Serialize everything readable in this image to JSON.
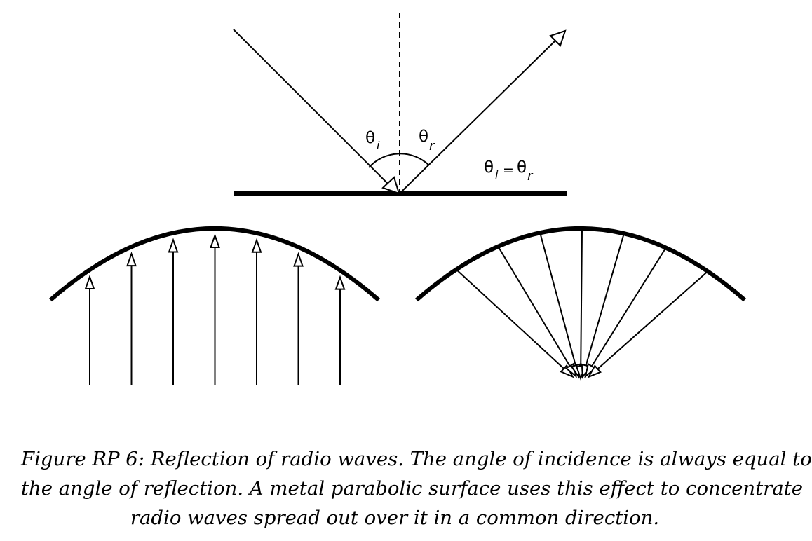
{
  "colors": {
    "ink": "#000000",
    "background": "#ffffff",
    "arrowhead_fill": "#ffffff"
  },
  "reflection_diagram": {
    "incident_label": "θ",
    "incident_sub": "i",
    "reflected_label": "θ",
    "reflected_sub": "r",
    "law_theta_1": "θ",
    "law_sub_1": "i",
    "law_equals": "=",
    "law_theta_2": "θ",
    "law_sub_2": "r"
  },
  "dish_incoming": {
    "ray_count": 7
  },
  "dish_focusing": {
    "ray_count": 7
  },
  "caption": {
    "line1": "Figure RP 6: Reflection of radio waves. The angle of incidence is always equal to",
    "line2": "the angle of reflection. A metal parabolic surface uses this effect to concentrate",
    "line3": "radio waves spread out over it in a common direction."
  }
}
